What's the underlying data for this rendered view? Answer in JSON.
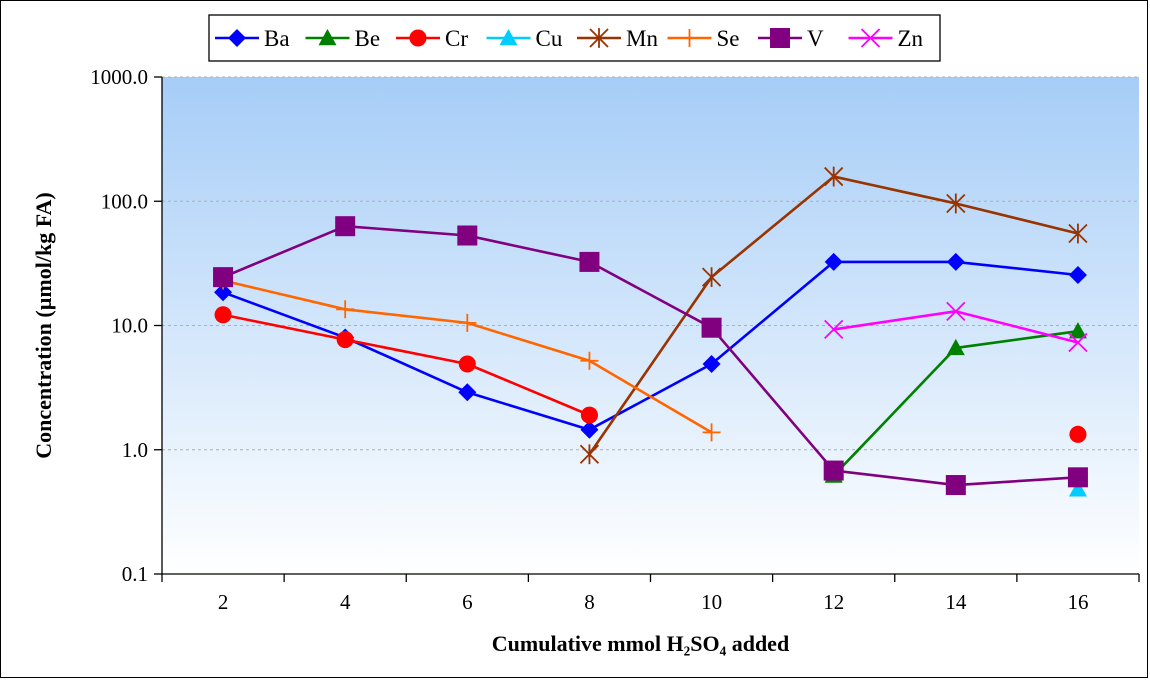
{
  "chart_data": {
    "type": "line",
    "title": "",
    "xlabel": "Cumulative mmol H₂SO₄ added",
    "ylabel": "Concentration (µmol/kg FA)",
    "yscale": "log",
    "ylim": [
      0.1,
      1000
    ],
    "xlim": [
      1,
      17
    ],
    "x": [
      2,
      4,
      6,
      8,
      10,
      12,
      14,
      16
    ],
    "x_tick_labels": [
      "2",
      "4",
      "6",
      "8",
      "10",
      "12",
      "14",
      "16"
    ],
    "y_ticks": [
      0.1,
      1,
      10,
      100,
      1000
    ],
    "y_tick_labels": [
      "0.1",
      "1.0",
      "10.0",
      "100.0",
      "1000.0"
    ],
    "grid": true,
    "legend_position": "top",
    "background": {
      "gradient_top": "#a6cdf7",
      "gradient_bottom": "#ffffff"
    },
    "series": [
      {
        "name": "Ba",
        "color": "#0000ff",
        "marker": "diamond",
        "values": [
          18.5,
          8.0,
          2.9,
          1.45,
          4.9,
          32.5,
          32.5,
          25.5
        ]
      },
      {
        "name": "Be",
        "color": "#008000",
        "marker": "triangle",
        "values": [
          null,
          null,
          null,
          null,
          null,
          0.62,
          6.6,
          9.0
        ]
      },
      {
        "name": "Cr",
        "color": "#ff0000",
        "marker": "circle",
        "values": [
          12.2,
          7.7,
          4.9,
          1.9,
          null,
          null,
          null,
          1.33
        ]
      },
      {
        "name": "Cu",
        "color": "#00ccff",
        "marker": "triangle",
        "values": [
          null,
          null,
          null,
          null,
          null,
          null,
          null,
          0.48
        ]
      },
      {
        "name": "Mn",
        "color": "#993300",
        "marker": "star",
        "values": [
          null,
          null,
          null,
          0.92,
          24.5,
          158,
          96,
          55
        ]
      },
      {
        "name": "Se",
        "color": "#ff6600",
        "marker": "plus",
        "values": [
          23.0,
          13.5,
          10.5,
          5.2,
          1.38,
          null,
          null,
          null
        ]
      },
      {
        "name": "V",
        "color": "#800080",
        "marker": "square",
        "values": [
          24.5,
          63,
          53,
          32.5,
          9.6,
          0.68,
          0.52,
          0.6
        ]
      },
      {
        "name": "Zn",
        "color": "#ff00ff",
        "marker": "x",
        "values": [
          null,
          null,
          null,
          null,
          null,
          9.3,
          13.0,
          7.3
        ]
      }
    ]
  }
}
